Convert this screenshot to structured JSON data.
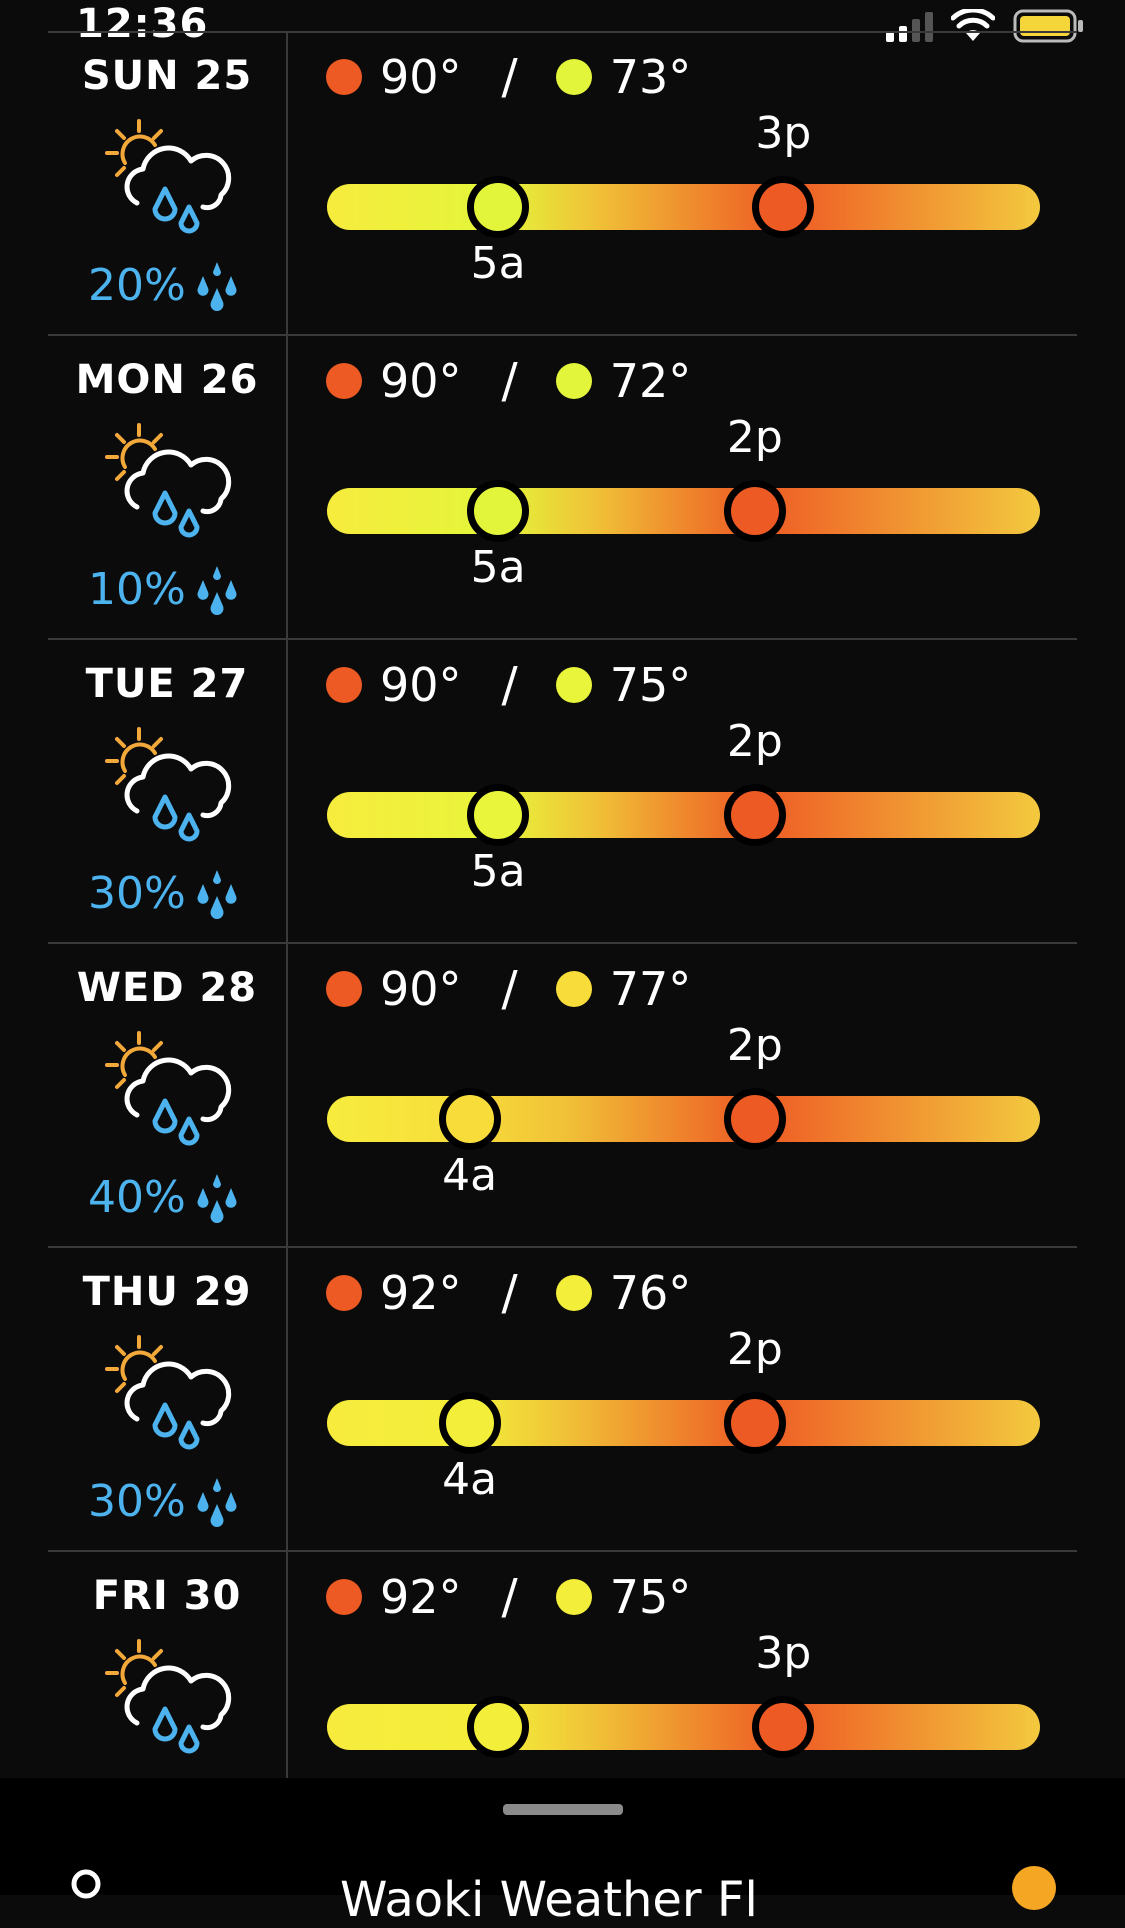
{
  "status_bar": {
    "time": "12:36",
    "battery_color": "#f5d63a",
    "icons": [
      "signal-icon",
      "wifi-icon",
      "battery-icon"
    ]
  },
  "colors": {
    "background": "#0b0b0b",
    "divider": "#3a3a3a",
    "high_dot": "#ee5a24",
    "low_dot_cool": "#e3f53a",
    "low_dot_warm": "#f7dc3a",
    "precip_text": "#4db3ee",
    "bar_gradient": [
      "#f7ec3e",
      "#f0c037",
      "#ee5a24",
      "#f3c93e"
    ]
  },
  "days": [
    {
      "label": "SUN 25",
      "high": "90°",
      "low": "73°",
      "precip": "20%",
      "low_time": "5a",
      "high_time": "3p",
      "low_pos": 0.24,
      "high_pos": 0.64,
      "low_dot_color": "#e3f53a"
    },
    {
      "label": "MON 26",
      "high": "90°",
      "low": "72°",
      "precip": "10%",
      "low_time": "5a",
      "high_time": "2p",
      "low_pos": 0.24,
      "high_pos": 0.6,
      "low_dot_color": "#e3f53a"
    },
    {
      "label": "TUE 27",
      "high": "90°",
      "low": "75°",
      "precip": "30%",
      "low_time": "5a",
      "high_time": "2p",
      "low_pos": 0.24,
      "high_pos": 0.6,
      "low_dot_color": "#e8f53a"
    },
    {
      "label": "WED 28",
      "high": "90°",
      "low": "77°",
      "precip": "40%",
      "low_time": "4a",
      "high_time": "2p",
      "low_pos": 0.2,
      "high_pos": 0.6,
      "low_dot_color": "#f7dc3a"
    },
    {
      "label": "THU 29",
      "high": "92°",
      "low": "76°",
      "precip": "30%",
      "low_time": "4a",
      "high_time": "2p",
      "low_pos": 0.2,
      "high_pos": 0.6,
      "low_dot_color": "#f3ee3a"
    },
    {
      "label": "FRI 30",
      "high": "92°",
      "low": "75°",
      "precip": "",
      "low_time": "",
      "high_time": "3p",
      "low_pos": 0.24,
      "high_pos": 0.64,
      "low_dot_color": "#f3ee3a"
    }
  ],
  "bottom": {
    "location_title": "Waoki Weather Fl",
    "icons": [
      "location-pin-icon",
      "favorite-star-icon"
    ]
  }
}
